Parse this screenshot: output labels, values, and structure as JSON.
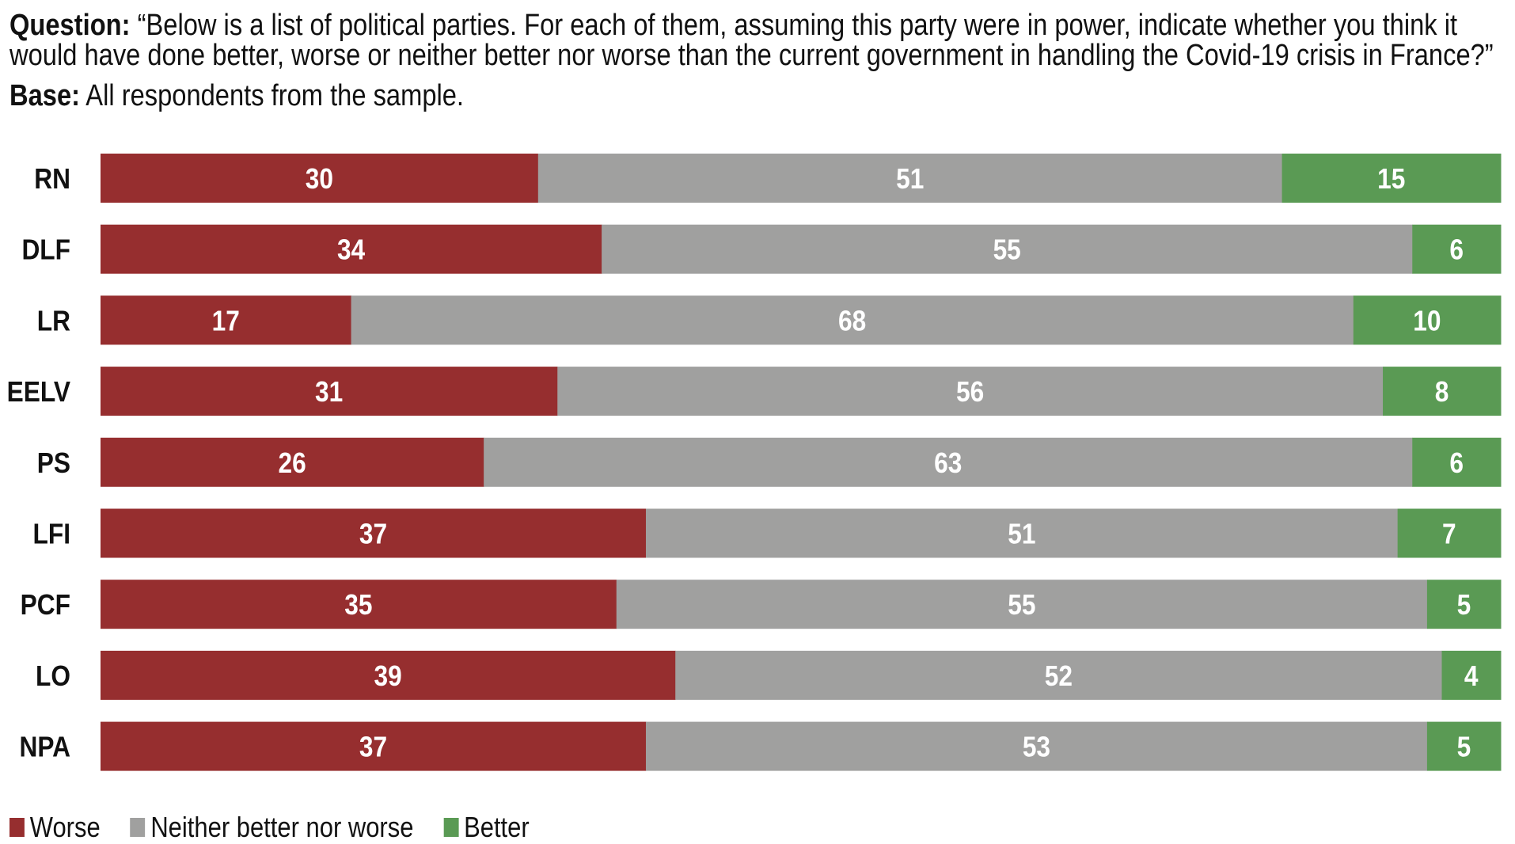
{
  "header": {
    "question_label": "Question:",
    "question_line1": "“Below is a list of political parties. For each of them, assuming this party were in power, indicate whether you think it",
    "question_line2": "would have done better, worse or neither better nor worse than the current government in handling the Covid-19 crisis in France?”",
    "base_label": "Base:",
    "base_text": "All respondents from the sample."
  },
  "chart_data": {
    "type": "bar",
    "orientation": "horizontal",
    "stacked": true,
    "normalized": true,
    "categories": [
      "RN",
      "DLF",
      "LR",
      "EELV",
      "PS",
      "LFI",
      "PCF",
      "LO",
      "NPA"
    ],
    "series": [
      {
        "name": "Worse",
        "color": "#962e2f",
        "values": [
          30,
          34,
          17,
          31,
          26,
          37,
          35,
          39,
          37
        ]
      },
      {
        "name": "Neither better nor worse",
        "color": "#a0a09f",
        "values": [
          51,
          55,
          68,
          56,
          63,
          51,
          55,
          52,
          53
        ]
      },
      {
        "name": "Better",
        "color": "#5a9a54",
        "values": [
          15,
          6,
          10,
          8,
          6,
          7,
          5,
          4,
          5
        ]
      }
    ],
    "legend_position": "bottom-left",
    "grid": false
  }
}
